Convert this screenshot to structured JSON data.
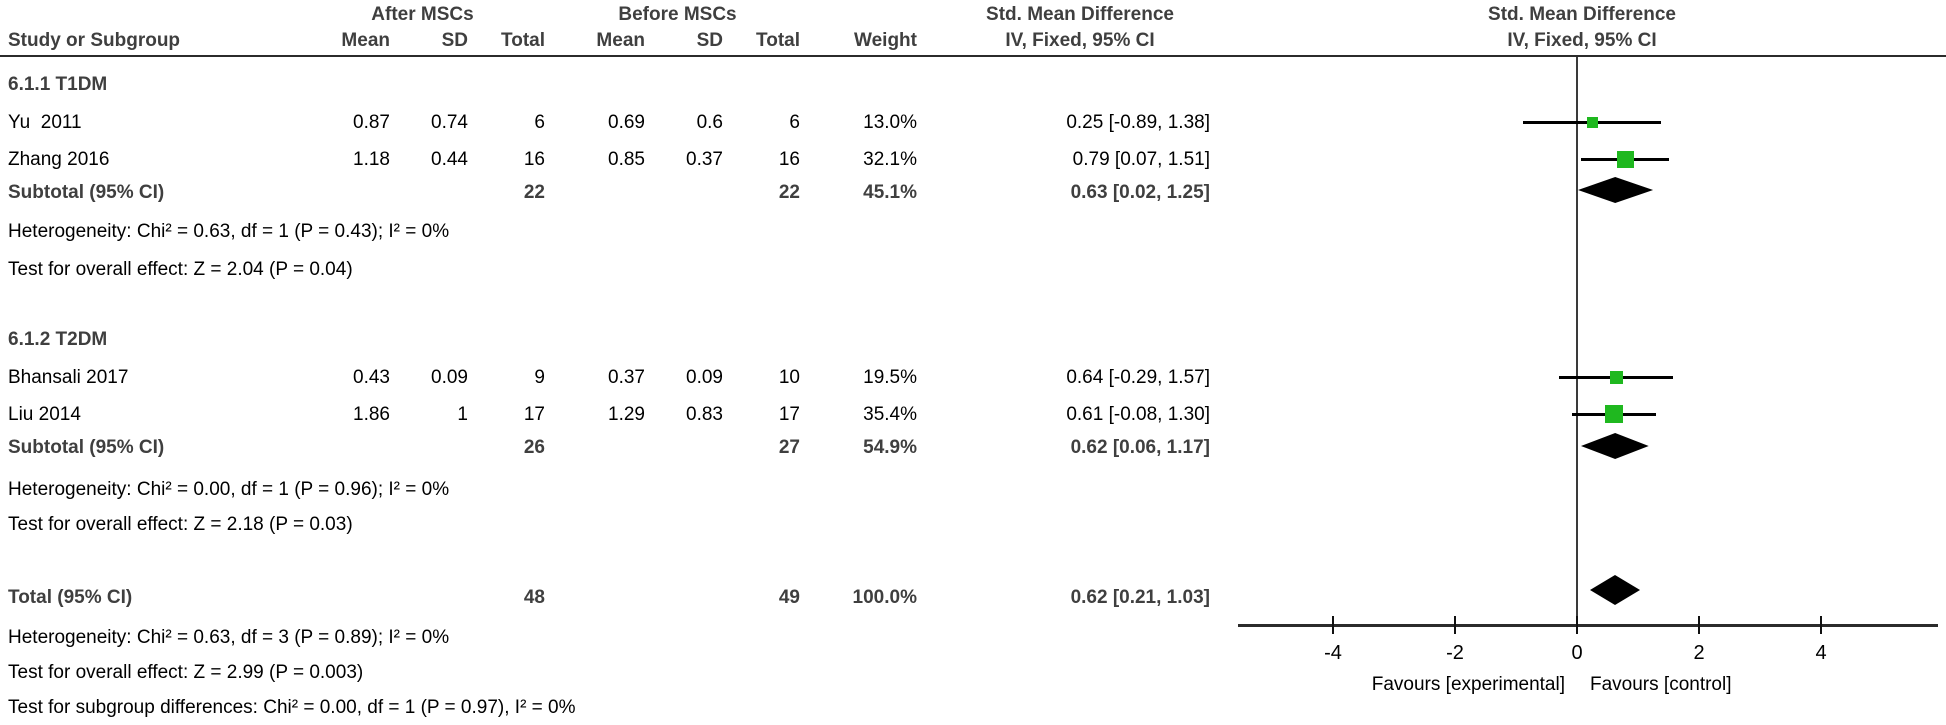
{
  "header": {
    "group1": "After MSCs",
    "group2": "Before MSCs",
    "effect_left_title": "Std. Mean Difference",
    "effect_right_title": "Std. Mean Difference",
    "col_study": "Study or Subgroup",
    "col_mean": "Mean",
    "col_sd": "SD",
    "col_total": "Total",
    "col_weight": "Weight",
    "effect_left_sub": "IV, Fixed, 95% CI",
    "effect_right_sub": "IV, Fixed, 95% CI"
  },
  "rows": [
    {
      "type": "subgroup",
      "study": "6.1.1 T1DM"
    },
    {
      "type": "study",
      "study": "Yu  2011",
      "mean1": "0.87",
      "sd1": "0.74",
      "total1": "6",
      "mean2": "0.69",
      "sd2": "0.6",
      "total2": "6",
      "weight": "13.0%",
      "ci": "0.25 [-0.89, 1.38]"
    },
    {
      "type": "study",
      "study": "Zhang 2016",
      "mean1": "1.18",
      "sd1": "0.44",
      "total1": "16",
      "mean2": "0.85",
      "sd2": "0.37",
      "total2": "16",
      "weight": "32.1%",
      "ci": "0.79 [0.07, 1.51]"
    },
    {
      "type": "subtotal",
      "study": "Subtotal (95% CI)",
      "total1": "22",
      "total2": "22",
      "weight": "45.1%",
      "ci": "0.63 [0.02, 1.25]"
    },
    {
      "type": "note",
      "study": "Heterogeneity: Chi² = 0.63, df = 1 (P = 0.43); I² = 0%"
    },
    {
      "type": "note",
      "study": "Test for overall effect: Z = 2.04 (P = 0.04)"
    },
    {
      "type": "subgroup",
      "study": "6.1.2 T2DM"
    },
    {
      "type": "study",
      "study": "Bhansali 2017",
      "mean1": "0.43",
      "sd1": "0.09",
      "total1": "9",
      "mean2": "0.37",
      "sd2": "0.09",
      "total2": "10",
      "weight": "19.5%",
      "ci": "0.64 [-0.29, 1.57]"
    },
    {
      "type": "study",
      "study": "Liu 2014",
      "mean1": "1.86",
      "sd1": "1",
      "total1": "17",
      "mean2": "1.29",
      "sd2": "0.83",
      "total2": "17",
      "weight": "35.4%",
      "ci": "0.61 [-0.08, 1.30]"
    },
    {
      "type": "subtotal",
      "study": "Subtotal (95% CI)",
      "total1": "26",
      "total2": "27",
      "weight": "54.9%",
      "ci": "0.62 [0.06, 1.17]"
    },
    {
      "type": "note",
      "study": "Heterogeneity: Chi² = 0.00, df = 1 (P = 0.96); I² = 0%"
    },
    {
      "type": "note",
      "study": "Test for overall effect: Z = 2.18 (P = 0.03)"
    },
    {
      "type": "subtotal",
      "study": "Total (95% CI)",
      "total1": "48",
      "total2": "49",
      "weight": "100.0%",
      "ci": "0.62 [0.21, 1.03]"
    },
    {
      "type": "note",
      "study": "Heterogeneity: Chi² = 0.63, df = 3 (P = 0.89); I² = 0%"
    },
    {
      "type": "note",
      "study": "Test for overall effect: Z = 2.99 (P = 0.003)"
    },
    {
      "type": "note",
      "study": "Test for subgroup differences: Chi² = 0.00, df = 1 (P = 0.97), I² = 0%"
    }
  ],
  "chart_data": {
    "type": "forest",
    "effect_measure": "Std. Mean Difference",
    "model": "IV, Fixed, 95% CI",
    "marker_color": "#1fb81f",
    "axis": {
      "ticks": [
        -4,
        -2,
        0,
        2,
        4
      ],
      "zero": 0,
      "min": -5.5,
      "max": 5.9,
      "favours_left": "Favours [experimental]",
      "favours_right": "Favours [control]"
    },
    "studies": [
      {
        "name": "Yu 2011",
        "subgroup": "6.1.1 T1DM",
        "smd": 0.25,
        "ci_low": -0.89,
        "ci_high": 1.38,
        "weight": 13.0
      },
      {
        "name": "Zhang 2016",
        "subgroup": "6.1.1 T1DM",
        "smd": 0.79,
        "ci_low": 0.07,
        "ci_high": 1.51,
        "weight": 32.1
      },
      {
        "name": "Bhansali 2017",
        "subgroup": "6.1.2 T2DM",
        "smd": 0.64,
        "ci_low": -0.29,
        "ci_high": 1.57,
        "weight": 19.5
      },
      {
        "name": "Liu 2014",
        "subgroup": "6.1.2 T2DM",
        "smd": 0.61,
        "ci_low": -0.08,
        "ci_high": 1.3,
        "weight": 35.4
      }
    ],
    "diamonds": [
      {
        "name": "Subtotal T1DM",
        "smd": 0.63,
        "ci_low": 0.02,
        "ci_high": 1.25
      },
      {
        "name": "Subtotal T2DM",
        "smd": 0.62,
        "ci_low": 0.06,
        "ci_high": 1.17
      },
      {
        "name": "Total",
        "smd": 0.62,
        "ci_low": 0.21,
        "ci_high": 1.03
      }
    ]
  }
}
